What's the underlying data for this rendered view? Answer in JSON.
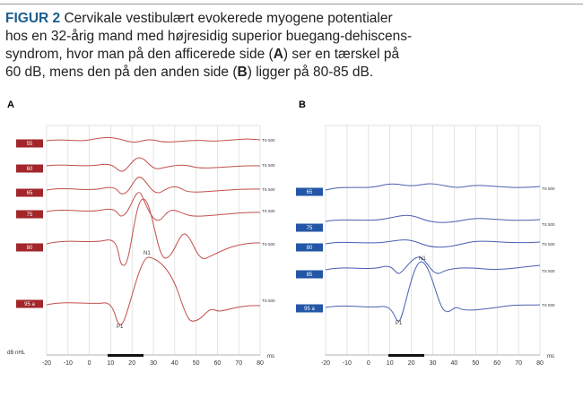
{
  "caption": {
    "label": "FIGUR 2",
    "lines": [
      "Cervikale vestibulært evokerede myogene potentialer",
      "hos en 32-årig mand med højresidig superior buegang-dehiscens-",
      [
        "syndrom, hvor man på den afficerede side (",
        "A",
        ") ser en tærskel på"
      ],
      [
        "60 dB, mens den på den anden side (",
        "B",
        ") ligger på 80-85 dB."
      ]
    ]
  },
  "panels": [
    {
      "label": "A",
      "color": "#c0504d",
      "box_color": "#a2262a",
      "xlim": [
        -20,
        80
      ],
      "xticks": [
        -20,
        -10,
        0,
        10,
        20,
        30,
        40,
        50,
        60,
        70,
        80
      ],
      "xunit": "ms",
      "ylabel": "dB nHL",
      "traces": [
        "55",
        "60",
        "65",
        "75",
        "80",
        "95 a"
      ],
      "trace_note": "TS 500",
      "peaks": [
        "P1",
        "N1"
      ]
    },
    {
      "label": "B",
      "color": "#4a5fb0",
      "box_color": "#2356a6",
      "xlim": [
        -20,
        80
      ],
      "xticks": [
        -20,
        -10,
        0,
        10,
        20,
        30,
        40,
        50,
        60,
        70,
        80
      ],
      "xunit": "ms",
      "traces": [
        "65",
        "75",
        "80",
        "85",
        "95 a"
      ],
      "trace_note": "TS 500",
      "peaks": [
        "P1",
        "N1"
      ]
    }
  ]
}
